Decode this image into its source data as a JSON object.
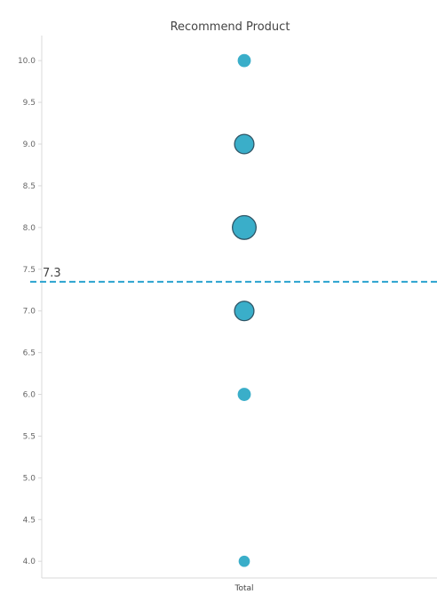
{
  "chart_data": {
    "type": "scatter",
    "title": "Recommend Product",
    "xlabel": "",
    "ylabel": "",
    "categories": [
      "Total"
    ],
    "ylim": [
      3.8,
      10.3
    ],
    "y_ticks": [
      "4.0",
      "4.5",
      "5.0",
      "5.5",
      "6.0",
      "6.5",
      "7.0",
      "7.5",
      "8.0",
      "8.5",
      "9.0",
      "9.5",
      "10.0"
    ],
    "grid": false,
    "points": [
      {
        "category": "Total",
        "y": 10,
        "size": 1
      },
      {
        "category": "Total",
        "y": 9,
        "size": 3
      },
      {
        "category": "Total",
        "y": 8,
        "size": 5
      },
      {
        "category": "Total",
        "y": 7,
        "size": 3
      },
      {
        "category": "Total",
        "y": 6,
        "size": 1
      },
      {
        "category": "Total",
        "y": 4,
        "size": 0.6
      }
    ],
    "reference_line": {
      "value": 7.35,
      "label": "7.3",
      "style": "dashed"
    },
    "colors": {
      "marker_fill": "#3aaec9",
      "marker_stroke": "#2f5566",
      "reference_line": "#2aa3cf",
      "axis": "#d9d9d9"
    }
  }
}
